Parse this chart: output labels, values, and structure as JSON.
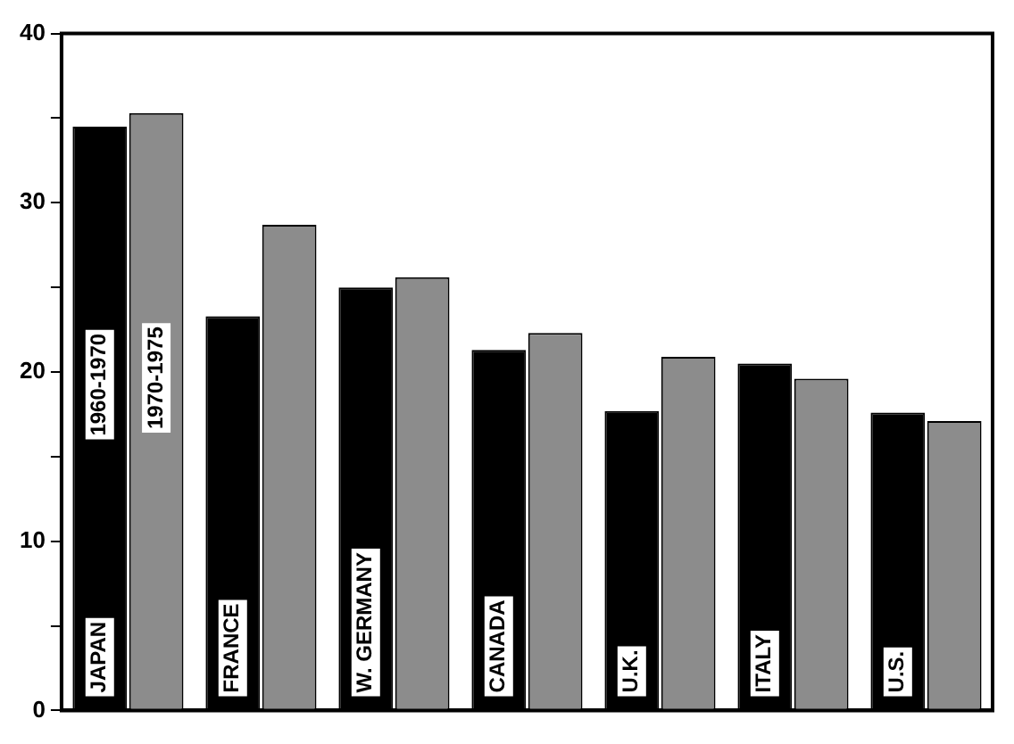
{
  "chart_data": {
    "type": "bar",
    "categories": [
      "JAPAN",
      "FRANCE",
      "W. GERMANY",
      "CANADA",
      "U.K.",
      "ITALY",
      "U.S."
    ],
    "series": [
      {
        "name": "1960-1970",
        "color": "#000000",
        "values": [
          34.5,
          23.3,
          25.0,
          21.3,
          17.7,
          20.5,
          17.6
        ]
      },
      {
        "name": "1970-1975",
        "color": "#8c8c8c",
        "values": [
          35.3,
          28.7,
          25.6,
          22.3,
          20.9,
          19.6,
          17.1
        ]
      }
    ],
    "ylim": [
      0,
      40
    ],
    "yticks": [
      0,
      {
        "value": 5,
        "label": null
      },
      10,
      {
        "value": 15,
        "label": null
      },
      20,
      {
        "value": 25,
        "label": null
      },
      30,
      {
        "value": 35,
        "label": null
      },
      40
    ],
    "grid": false,
    "legend": false,
    "tick_labels": "y"
  }
}
